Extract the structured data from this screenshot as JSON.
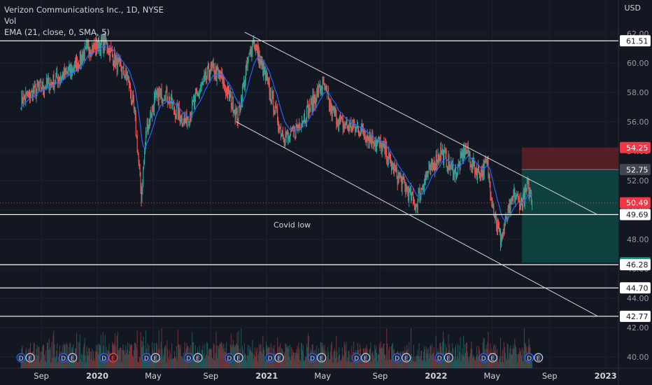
{
  "header": {
    "title": "Verizon Communications Inc., 1D, NYSE",
    "volume_label": "Vol",
    "ema_label": "EMA (21, close, 0, SMA, 5)",
    "currency": "USD"
  },
  "colors": {
    "background": "#131722",
    "up": "#26a69a",
    "down": "#ef5350",
    "ema": "#2962ff",
    "level_line": "#ffffff",
    "stop_zone": "#5d1f26",
    "target_zone": "#0d4542",
    "current_price": "#f23645"
  },
  "chart_data": {
    "type": "candlestick",
    "y_axis": {
      "min": 39.5,
      "max": 62.5,
      "ticks": [
        "62.00",
        "60.00",
        "58.00",
        "56.00",
        "54.00",
        "52.00",
        "50.00",
        "48.00",
        "46.00",
        "44.00",
        "42.00",
        "40.00"
      ]
    },
    "x_axis": {
      "labels": [
        "Sep",
        "2020",
        "May",
        "Sep",
        "2021",
        "May",
        "Sep",
        "2022",
        "May",
        "Sep",
        "2023"
      ],
      "bold": [
        "2020",
        "2021",
        "2022",
        "2023"
      ]
    },
    "horizontal_levels": [
      61.51,
      49.69,
      46.28,
      44.7,
      42.77
    ],
    "price_tags": [
      {
        "value": 61.51,
        "label": "61.51",
        "style": "white"
      },
      {
        "value": 54.25,
        "label": "54.25",
        "style": "red"
      },
      {
        "value": 52.75,
        "label": "52.75",
        "style": "gray"
      },
      {
        "value": 50.49,
        "label": "50.49",
        "style": "red"
      },
      {
        "value": 49.69,
        "label": "49.69",
        "style": "white"
      },
      {
        "value": 46.41,
        "label": "46.41",
        "style": "teal"
      },
      {
        "value": 46.28,
        "label": "46.28",
        "style": "white"
      },
      {
        "value": 44.7,
        "label": "44.70",
        "style": "white"
      },
      {
        "value": 42.77,
        "label": "42.77",
        "style": "white"
      }
    ],
    "current_price": 50.49,
    "position": {
      "entry": 52.75,
      "stop": 54.25,
      "target": 46.41
    },
    "annotation": {
      "text": "Covid low",
      "value": 48.8
    },
    "channel": {
      "upper": [
        [
          2020.87,
          62.1
        ],
        [
          2022.95,
          49.7
        ]
      ],
      "lower": [
        [
          2020.82,
          56.0
        ],
        [
          2022.95,
          42.8
        ]
      ]
    },
    "anchors": [
      [
        2019.55,
        57.5
      ],
      [
        2019.7,
        58.5
      ],
      [
        2019.85,
        59.5
      ],
      [
        2019.95,
        61.0
      ],
      [
        2020.05,
        61.4
      ],
      [
        2020.12,
        59.8
      ],
      [
        2020.18,
        59.0
      ],
      [
        2020.22,
        56.5
      ],
      [
        2020.26,
        51.0
      ],
      [
        2020.29,
        55.5
      ],
      [
        2020.34,
        57.5
      ],
      [
        2020.4,
        58.0
      ],
      [
        2020.46,
        56.8
      ],
      [
        2020.52,
        56.0
      ],
      [
        2020.6,
        58.0
      ],
      [
        2020.67,
        59.6
      ],
      [
        2020.73,
        59.0
      ],
      [
        2020.79,
        57.5
      ],
      [
        2020.83,
        56.3
      ],
      [
        2020.88,
        59.5
      ],
      [
        2020.92,
        61.6
      ],
      [
        2020.97,
        59.8
      ],
      [
        2021.02,
        58.0
      ],
      [
        2021.08,
        55.5
      ],
      [
        2021.13,
        54.8
      ],
      [
        2021.2,
        56.0
      ],
      [
        2021.28,
        57.5
      ],
      [
        2021.33,
        58.6
      ],
      [
        2021.38,
        56.8
      ],
      [
        2021.45,
        55.8
      ],
      [
        2021.55,
        55.5
      ],
      [
        2021.63,
        54.8
      ],
      [
        2021.7,
        54.0
      ],
      [
        2021.76,
        52.5
      ],
      [
        2021.82,
        51.5
      ],
      [
        2021.88,
        50.3
      ],
      [
        2021.93,
        52.0
      ],
      [
        2021.98,
        53.0
      ],
      [
        2022.03,
        54.0
      ],
      [
        2022.08,
        53.0
      ],
      [
        2022.12,
        52.5
      ],
      [
        2022.17,
        54.2
      ],
      [
        2022.22,
        53.0
      ],
      [
        2022.26,
        52.5
      ],
      [
        2022.3,
        53.2
      ],
      [
        2022.34,
        50.0
      ],
      [
        2022.38,
        48.0
      ],
      [
        2022.42,
        49.5
      ],
      [
        2022.46,
        51.0
      ],
      [
        2022.5,
        50.5
      ],
      [
        2022.54,
        51.5
      ],
      [
        2022.57,
        50.6
      ]
    ],
    "earnings_markers": [
      {
        "date": 2019.55,
        "letters": [
          "D",
          "E"
        ]
      },
      {
        "date": 2019.8,
        "letters": [
          "D",
          "E"
        ]
      },
      {
        "date": 2020.04,
        "letters": [
          "D",
          "E"
        ],
        "e_red": true
      },
      {
        "date": 2020.29,
        "letters": [
          "D",
          "E"
        ]
      },
      {
        "date": 2020.54,
        "letters": [
          "D",
          "E"
        ]
      },
      {
        "date": 2020.78,
        "letters": [
          "D",
          "E"
        ]
      },
      {
        "date": 2021.02,
        "letters": [
          "D",
          "E"
        ]
      },
      {
        "date": 2021.27,
        "letters": [
          "D",
          "E"
        ]
      },
      {
        "date": 2021.53,
        "letters": [
          "D",
          "E"
        ]
      },
      {
        "date": 2021.77,
        "letters": [
          "D",
          "E"
        ]
      },
      {
        "date": 2022.02,
        "letters": [
          "D",
          "E"
        ]
      },
      {
        "date": 2022.28,
        "letters": [
          "D",
          "E"
        ]
      },
      {
        "date": 2022.55,
        "letters": [
          "D",
          "E"
        ]
      }
    ]
  }
}
